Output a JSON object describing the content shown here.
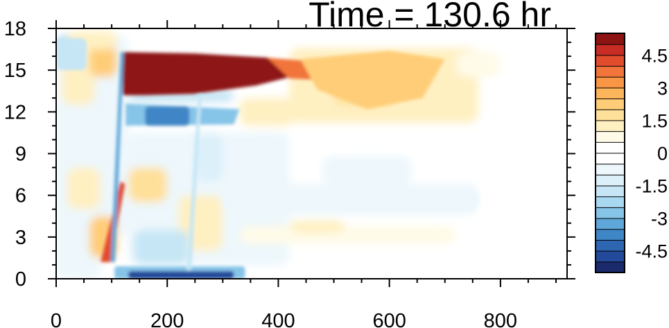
{
  "chart_data": {
    "type": "heatmap",
    "title": "Time = 130.6 hr",
    "xlabel": "",
    "ylabel": "",
    "xlim": [
      0,
      920
    ],
    "ylim": [
      0,
      18
    ],
    "x_ticks": [
      0,
      200,
      400,
      600,
      800
    ],
    "y_ticks": [
      0,
      3,
      6,
      9,
      12,
      15,
      18
    ],
    "colorbar": {
      "levels": [
        -5.5,
        -5,
        -4.5,
        -4,
        -3.5,
        -3,
        -2.5,
        -2,
        -1.5,
        -1,
        -0.5,
        0,
        0.5,
        1,
        1.5,
        2,
        2.5,
        3,
        3.5,
        4,
        4.5,
        5,
        5.5
      ],
      "labels": [
        "4.5",
        "3",
        "1.5",
        "0",
        "-1.5",
        "-3",
        "-4.5"
      ],
      "label_values": [
        4.5,
        3,
        1.5,
        0,
        -1.5,
        -3,
        -4.5
      ],
      "colors": [
        "#1b2a6b",
        "#234a9a",
        "#2f66b2",
        "#3f86c6",
        "#5fa7d8",
        "#86c4e8",
        "#a9d8f1",
        "#c6e6f5",
        "#dcf0fa",
        "#edf7fc",
        "#ffffff",
        "#ffffff",
        "#fffbe8",
        "#fff0c2",
        "#ffe09a",
        "#ffcd78",
        "#fdb55c",
        "#f99645",
        "#f1743a",
        "#e14c2d",
        "#c82d25",
        "#8e1414"
      ]
    },
    "features": [
      {
        "name": "upper positive plume",
        "x": [
          120,
          480
        ],
        "y": [
          13.5,
          16
        ],
        "value": 5.5
      },
      {
        "name": "positive tail",
        "x": [
          440,
          700
        ],
        "y": [
          11,
          16.5
        ],
        "value": 2
      },
      {
        "name": "negative band below plume",
        "x": [
          120,
          330
        ],
        "y": [
          11,
          12.5
        ],
        "value": -4
      },
      {
        "name": "surface negative layer",
        "x": [
          110,
          330
        ],
        "y": [
          0,
          0.8
        ],
        "value": -5
      },
      {
        "name": "slanted positive front",
        "x": [
          80,
          125
        ],
        "y": [
          1,
          7
        ],
        "value": 4
      },
      {
        "name": "mid-level negative band",
        "x": [
          300,
          760
        ],
        "y": [
          5,
          6.5
        ],
        "value": -1
      },
      {
        "name": "left edge negative",
        "x": [
          0,
          60
        ],
        "y": [
          15,
          17.5
        ],
        "value": -2
      }
    ]
  }
}
